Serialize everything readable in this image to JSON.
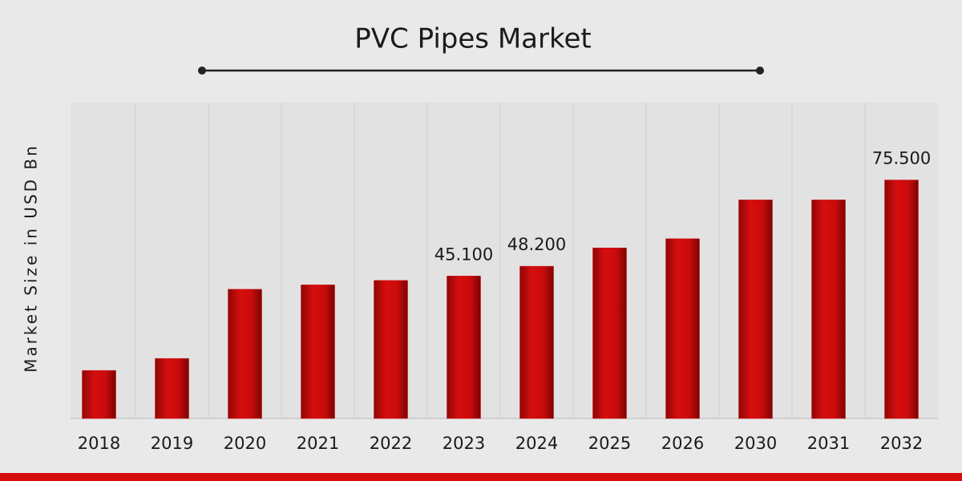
{
  "chart_data": {
    "type": "bar",
    "title": "PVC Pipes Market",
    "y_label": "Market Size in USD Bn",
    "categories": [
      "2018",
      "2019",
      "2020",
      "2021",
      "2022",
      "2023",
      "2024",
      "2025",
      "2026",
      "2030",
      "2031",
      "2032"
    ],
    "values": [
      15.2,
      19.0,
      40.9,
      42.3,
      43.7,
      45.1,
      48.2,
      54.0,
      56.9,
      69.2,
      69.2,
      75.5
    ],
    "value_labels": [
      null,
      null,
      null,
      null,
      null,
      "45.100",
      "48.200",
      null,
      null,
      null,
      null,
      "75.500"
    ],
    "color": "#d40d0d",
    "ylim": [
      0,
      100
    ]
  }
}
